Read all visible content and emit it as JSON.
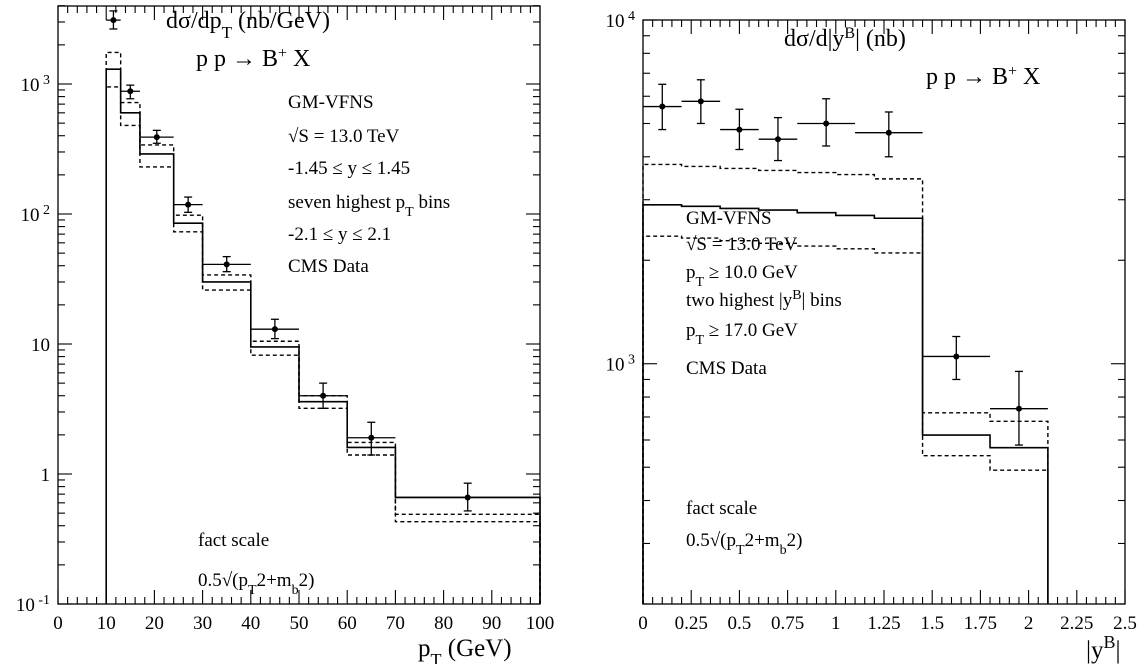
{
  "chart_data": [
    {
      "type": "step",
      "title": "dσ/dp_T (nb/GeV)",
      "process": "p p → B⁺ X",
      "xlabel": "p_T (GeV)",
      "ylabel": "",
      "xlim": [
        0,
        100
      ],
      "ylim": [
        0.1,
        4000
      ],
      "yscale": "log",
      "x_ticks": [
        0,
        10,
        20,
        30,
        40,
        50,
        60,
        70,
        80,
        90,
        100
      ],
      "y_tick_labels": [
        "10⁻¹",
        "1",
        "10",
        "10²",
        "10³"
      ],
      "annotations": [
        "GM-VFNS",
        "√S = 13.0 TeV",
        "-1.45 ≤ y ≤ 1.45",
        "seven highest p_T bins",
        "-2.1 ≤  y ≤ 2.1",
        "CMS Data",
        "fact scale",
        "0.5√(p_T²+m_b²)"
      ],
      "bin_edges": [
        10,
        13,
        17,
        24,
        30,
        40,
        50,
        60,
        70,
        100
      ],
      "series": [
        {
          "style": "solid",
          "values": [
            1300,
            600,
            290,
            85,
            30,
            9.5,
            3.6,
            1.6,
            0.66
          ]
        },
        {
          "style": "dashed-upper",
          "values": [
            1750,
            720,
            340,
            98,
            34,
            10.5,
            4.0,
            1.75,
            0.49
          ]
        },
        {
          "style": "dashed-lower",
          "values": [
            950,
            480,
            230,
            73,
            26,
            8.2,
            3.2,
            1.4,
            0.43
          ]
        }
      ],
      "data_points": [
        {
          "x": 11.5,
          "x_err": 1.5,
          "y": 3100,
          "y_low": 2650,
          "y_high": 3650
        },
        {
          "x": 15,
          "x_err": 2,
          "y": 880,
          "y_low": 770,
          "y_high": 980
        },
        {
          "x": 20.5,
          "x_err": 3.5,
          "y": 390,
          "y_low": 350,
          "y_high": 440
        },
        {
          "x": 27,
          "x_err": 3,
          "y": 118,
          "y_low": 103,
          "y_high": 135
        },
        {
          "x": 35,
          "x_err": 5,
          "y": 41,
          "y_low": 36,
          "y_high": 47
        },
        {
          "x": 45,
          "x_err": 5,
          "y": 13,
          "y_low": 11,
          "y_high": 15.5
        },
        {
          "x": 55,
          "x_err": 5,
          "y": 4.0,
          "y_low": 3.2,
          "y_high": 5.0
        },
        {
          "x": 65,
          "x_err": 5,
          "y": 1.9,
          "y_low": 1.4,
          "y_high": 2.5
        },
        {
          "x": 85,
          "x_err": 15,
          "y": 0.66,
          "y_low": 0.52,
          "y_high": 0.85
        }
      ]
    },
    {
      "type": "step",
      "title": "dσ/d|y^B| (nb)",
      "process": "p p → B⁺ X",
      "xlabel": "|y^B|",
      "ylabel": "",
      "xlim": [
        0,
        2.5
      ],
      "ylim": [
        200,
        10000
      ],
      "yscale": "log",
      "x_ticks": [
        "0",
        "0.25",
        "0.5",
        "0.75",
        "1",
        "1.25",
        "1.5",
        "1.75",
        "2",
        "2.25",
        "2.5"
      ],
      "y_tick_labels": [
        "10³",
        "10⁴"
      ],
      "annotations": [
        "GM-VFNS",
        "√S = 13.0 TeV",
        "p_T ≥ 10.0 GeV",
        "two highest |y^B| bins",
        "p_T ≥ 17.0 GeV",
        "CMS Data",
        "fact scale",
        "0.5√(p_T²+m_b²)"
      ],
      "bin_edges": [
        0,
        0.2,
        0.4,
        0.6,
        0.8,
        1.0,
        1.2,
        1.45,
        1.8,
        2.1
      ],
      "series": [
        {
          "style": "solid",
          "values": [
            2900,
            2870,
            2830,
            2800,
            2750,
            2700,
            2650,
            620,
            570
          ]
        },
        {
          "style": "dashed-upper",
          "values": [
            3800,
            3750,
            3700,
            3650,
            3600,
            3550,
            3450,
            720,
            680
          ]
        },
        {
          "style": "dashed-lower",
          "values": [
            2350,
            2320,
            2280,
            2240,
            2200,
            2160,
            2100,
            540,
            490
          ]
        }
      ],
      "data_points": [
        {
          "x": 0.1,
          "x_err": 0.1,
          "y": 5600,
          "y_low": 4800,
          "y_high": 6500
        },
        {
          "x": 0.3,
          "x_err": 0.1,
          "y": 5800,
          "y_low": 5000,
          "y_high": 6700
        },
        {
          "x": 0.5,
          "x_err": 0.1,
          "y": 4800,
          "y_low": 4200,
          "y_high": 5500
        },
        {
          "x": 0.7,
          "x_err": 0.1,
          "y": 4500,
          "y_low": 3900,
          "y_high": 5200
        },
        {
          "x": 0.95,
          "x_err": 0.15,
          "y": 5000,
          "y_low": 4300,
          "y_high": 5900
        },
        {
          "x": 1.275,
          "x_err": 0.175,
          "y": 4700,
          "y_low": 4000,
          "y_high": 5400
        },
        {
          "x": 1.625,
          "x_err": 0.175,
          "y": 1050,
          "y_low": 900,
          "y_high": 1200
        },
        {
          "x": 1.95,
          "x_err": 0.15,
          "y": 740,
          "y_low": 580,
          "y_high": 950
        }
      ]
    }
  ]
}
